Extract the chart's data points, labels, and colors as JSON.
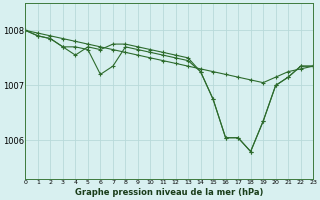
{
  "xlabel": "Graphe pression niveau de la mer (hPa)",
  "background_color": "#d8f0f0",
  "grid_color": "#b8dada",
  "line_color": "#2d6b2d",
  "marker_color": "#2d6b2d",
  "x_ticks": [
    0,
    1,
    2,
    3,
    4,
    5,
    6,
    7,
    8,
    9,
    10,
    11,
    12,
    13,
    14,
    15,
    16,
    17,
    18,
    19,
    20,
    21,
    22,
    23
  ],
  "y_ticks": [
    1006,
    1007,
    1008
  ],
  "ylim": [
    1005.3,
    1008.5
  ],
  "xlim": [
    0,
    23
  ],
  "series": [
    [
      1008.0,
      1007.95,
      1007.9,
      1007.85,
      1007.8,
      1007.75,
      1007.7,
      1007.65,
      1007.6,
      1007.55,
      1007.5,
      1007.45,
      1007.4,
      1007.35,
      1007.3,
      1007.25,
      1007.2,
      1007.15,
      1007.1,
      1007.05,
      1007.15,
      1007.25,
      1007.3,
      1007.35
    ],
    [
      1008.0,
      1007.9,
      1007.85,
      1007.7,
      1007.7,
      1007.65,
      1007.2,
      1007.35,
      1007.7,
      1007.65,
      1007.6,
      1007.55,
      1007.5,
      1007.45,
      1007.25,
      1006.75,
      1006.05,
      1006.05,
      1005.8,
      1006.35,
      1007.0,
      1007.15,
      1007.35,
      1007.35
    ],
    [
      1008.0,
      1007.9,
      1007.85,
      1007.7,
      1007.55,
      1007.7,
      1007.65,
      1007.75,
      1007.75,
      1007.7,
      1007.65,
      1007.6,
      1007.55,
      1007.5,
      1007.25,
      1006.75,
      1006.05,
      1006.05,
      1005.8,
      1006.35,
      1007.0,
      1007.15,
      1007.35,
      1007.35
    ]
  ]
}
